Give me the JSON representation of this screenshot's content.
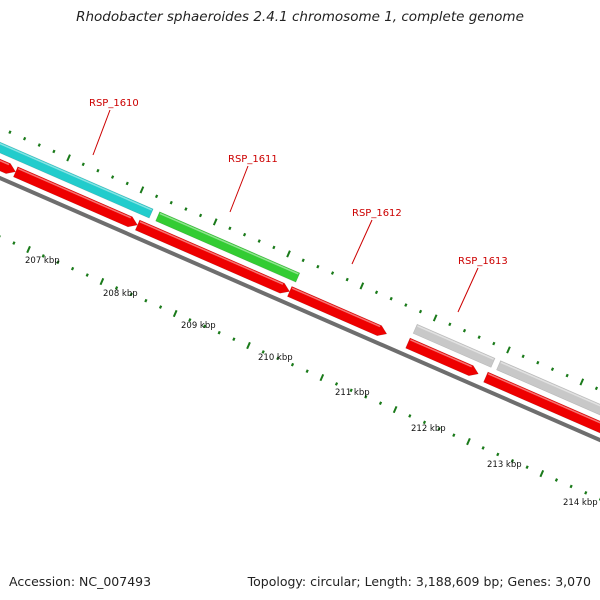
{
  "title": "Rhodobacter sphaeroides 2.4.1 chromosome 1, complete genome",
  "accession": "Accession: NC_007493",
  "topology": "Topology: circular; Length: 3,188,609 bp; Genes: 3,070",
  "colors": {
    "backbone": "#6e6e6e",
    "cds": "#ee0000",
    "tick": "#1a7a1a",
    "label": "#cc0000",
    "gene_cyan": "#22cccc",
    "gene_green": "#33cc33",
    "gene_gray": "#c8c8c8"
  },
  "scale_labels": [
    "207 kbp",
    "208 kbp",
    "209 kbp",
    "210 kbp",
    "211 kbp",
    "212 kbp",
    "213 kbp",
    "214 kbp"
  ],
  "gene_labels": [
    {
      "text": "RSP_1610",
      "color": "cyan"
    },
    {
      "text": "RSP_1611",
      "color": "green"
    },
    {
      "text": "RSP_1612",
      "color": "none"
    },
    {
      "text": "RSP_1613",
      "color": "gray"
    }
  ]
}
